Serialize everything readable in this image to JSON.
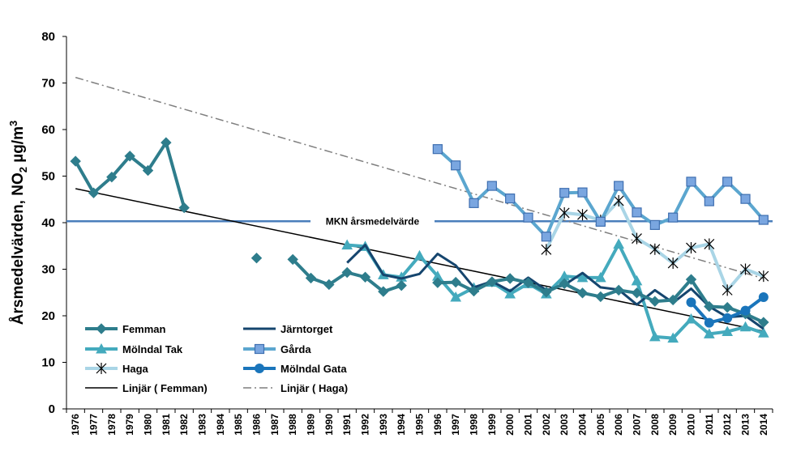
{
  "chart_data": {
    "type": "line",
    "ylabel_main": "Årsmedelvärden, NO",
    "ylabel_sub": "2",
    "ylabel_unit": " µg/m",
    "ylabel_sup": "3",
    "ylim": [
      0,
      80
    ],
    "yticks": [
      0,
      10,
      20,
      30,
      40,
      50,
      60,
      70,
      80
    ],
    "grid": false,
    "legend_position": "bottom-left",
    "x": [
      1976,
      1977,
      1978,
      1979,
      1980,
      1981,
      1982,
      1983,
      1984,
      1985,
      1986,
      1987,
      1988,
      1989,
      1990,
      1991,
      1992,
      1993,
      1994,
      1995,
      1996,
      1997,
      1998,
      1999,
      2000,
      2001,
      2002,
      2003,
      2004,
      2005,
      2006,
      2007,
      2008,
      2009,
      2010,
      2011,
      2012,
      2013,
      2014
    ],
    "mkn_label": "MKN årsmedelvärde",
    "mkn_value": 40.3,
    "series": [
      {
        "name": "Femman",
        "color": "#2e7d8c",
        "marker": "diamond",
        "values": [
          53.2,
          46.4,
          49.8,
          54.3,
          51.2,
          57.2,
          43.2,
          null,
          null,
          null,
          32.4,
          null,
          32.1,
          28.1,
          26.7,
          29.3,
          28.3,
          25.2,
          26.5,
          null,
          27.1,
          27.2,
          25.3,
          27.3,
          28.0,
          27.1,
          25.1,
          26.9,
          24.9,
          24.1,
          25.5,
          24.9,
          23.1,
          23.4,
          27.8,
          22.0,
          21.8,
          20.4,
          18.6
        ]
      },
      {
        "name": "Järntorget",
        "color": "#15456e",
        "marker": "none",
        "values": [
          null,
          null,
          null,
          null,
          null,
          null,
          null,
          null,
          null,
          null,
          null,
          null,
          null,
          null,
          null,
          31.4,
          35.2,
          28.8,
          28.0,
          29.0,
          33.3,
          30.8,
          26.1,
          27.4,
          25.3,
          28.2,
          25.5,
          26.6,
          29.2,
          26.1,
          25.6,
          22.4,
          25.5,
          22.8,
          25.8,
          22.0,
          19.7,
          20.0,
          17.2
        ]
      },
      {
        "name": "Mölndal Tak",
        "color": "#44aabd",
        "marker": "triangle",
        "values": [
          null,
          null,
          null,
          null,
          null,
          null,
          null,
          null,
          null,
          null,
          null,
          null,
          null,
          null,
          null,
          35.2,
          34.9,
          28.8,
          28.3,
          32.9,
          28.5,
          24.0,
          26.0,
          27.2,
          24.7,
          26.9,
          24.7,
          28.5,
          28.2,
          28.2,
          35.4,
          27.5,
          15.5,
          15.2,
          19.3,
          16.1,
          16.6,
          17.6,
          16.3
        ]
      },
      {
        "name": "Gårda",
        "color": "#5ba6cf",
        "marker": "square",
        "values": [
          null,
          null,
          null,
          null,
          null,
          null,
          null,
          null,
          null,
          null,
          null,
          null,
          null,
          null,
          null,
          null,
          null,
          null,
          null,
          null,
          55.8,
          52.3,
          44.2,
          47.9,
          45.2,
          41.1,
          37.0,
          46.4,
          46.5,
          40.2,
          47.9,
          42.2,
          39.5,
          41.1,
          48.8,
          44.6,
          48.8,
          45.1,
          40.6
        ]
      },
      {
        "name": "Haga",
        "color": "#a9d5e6",
        "marker": "asterisk",
        "values": [
          null,
          null,
          null,
          null,
          null,
          null,
          null,
          null,
          null,
          null,
          null,
          null,
          null,
          null,
          null,
          null,
          null,
          null,
          null,
          null,
          null,
          null,
          null,
          null,
          null,
          null,
          34.2,
          42.1,
          41.7,
          40.5,
          44.7,
          36.6,
          34.3,
          31.3,
          34.6,
          35.4,
          25.5,
          30.0,
          28.5
        ]
      },
      {
        "name": "Mölndal Gata",
        "color": "#1a75bb",
        "marker": "circle",
        "values": [
          null,
          null,
          null,
          null,
          null,
          null,
          null,
          null,
          null,
          null,
          null,
          null,
          null,
          null,
          null,
          null,
          null,
          null,
          null,
          null,
          null,
          null,
          null,
          null,
          null,
          null,
          null,
          null,
          null,
          null,
          null,
          null,
          null,
          null,
          22.9,
          18.5,
          19.5,
          21.1,
          24.0
        ]
      },
      {
        "name": "Linjär ( Femman)",
        "color": "#000000",
        "marker": "none",
        "trend": [
          [
            1976,
            47.3
          ],
          [
            2014,
            16.7
          ]
        ]
      },
      {
        "name": "Linjär ( Haga)",
        "color": "#7f7f7f",
        "marker": "none",
        "dashed": true,
        "trend": [
          [
            1976,
            71.2
          ],
          [
            2014,
            28.0
          ]
        ]
      }
    ]
  }
}
